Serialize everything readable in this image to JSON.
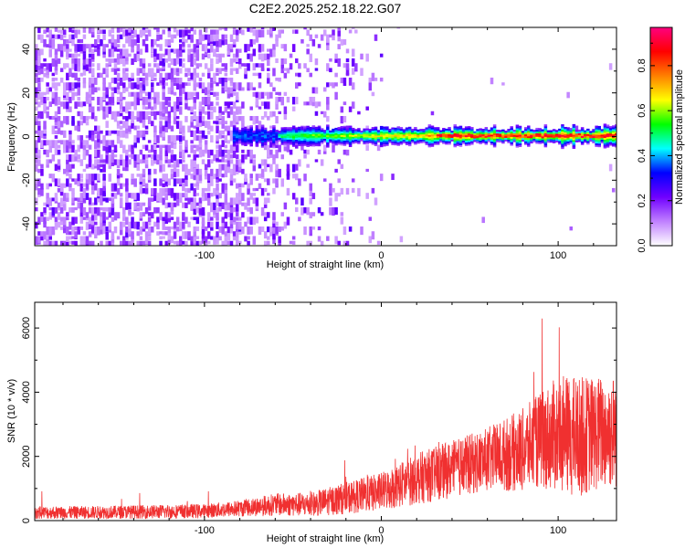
{
  "title": "C2E2.2025.252.18.22.G07",
  "chart_data": [
    {
      "type": "heatmap",
      "xlabel": "Height of straight line (km)",
      "ylabel": "Frequency (Hz)",
      "xlim": [
        -196,
        133
      ],
      "ylim": [
        -50,
        50
      ],
      "xticks": [
        -100,
        0,
        100
      ],
      "xtick_labels": [
        "-100",
        "0",
        "100"
      ],
      "yticks": [
        -40,
        -20,
        0,
        20,
        40
      ],
      "ytick_labels": [
        "-40",
        "-20",
        "0",
        "20",
        "40"
      ],
      "grid": false,
      "colorbar": {
        "label": "Normalized spectral amplitude",
        "range": [
          0,
          0.97
        ],
        "ticks": [
          0.0,
          0.2,
          0.4,
          0.6,
          0.8
        ],
        "tick_labels": [
          "0.0",
          "0.2",
          "0.4",
          "0.6",
          "0.8"
        ],
        "colormap": [
          "#ffffff",
          "#c080ff",
          "#7000ff",
          "#0000ff",
          "#00ffff",
          "#00ff00",
          "#ffff00",
          "#ff8000",
          "#ff0000",
          "#ff0080"
        ]
      },
      "description_of_values": {
        "noise_region_x": [
          -196,
          -80
        ],
        "signal_band_center_hz": 0,
        "signal_band_halfwidth_hz": [
          2,
          5
        ],
        "peak_amplitude_region_x": [
          30,
          130
        ]
      }
    },
    {
      "type": "line",
      "xlabel": "Height of straight line (km)",
      "ylabel": "SNR (10 * v/v)",
      "xlim": [
        -196,
        133
      ],
      "ylim": [
        0,
        6800
      ],
      "xticks": [
        -100,
        0,
        100
      ],
      "xtick_labels": [
        "-100",
        "0",
        "100"
      ],
      "yticks": [
        0,
        2000,
        4000,
        6000
      ],
      "ytick_labels": [
        "0",
        "2000",
        "4000",
        "6000"
      ],
      "grid": false,
      "color": "#f03030",
      "series": [
        {
          "x": [
            -196,
            -180,
            -160,
            -140,
            -120,
            -100,
            -80,
            -60,
            -40,
            -20,
            0,
            20,
            40,
            60,
            80,
            90,
            100,
            110,
            120,
            133
          ],
          "y_mean": [
            250,
            250,
            260,
            270,
            280,
            300,
            380,
            500,
            500,
            700,
            900,
            1300,
            1600,
            1900,
            2200,
            2500,
            2700,
            2600,
            2700,
            2800
          ],
          "y_spread": [
            200,
            200,
            200,
            210,
            220,
            220,
            260,
            350,
            380,
            500,
            600,
            800,
            900,
            1000,
            1300,
            1500,
            1800,
            1900,
            1800,
            1800
          ]
        }
      ]
    }
  ]
}
